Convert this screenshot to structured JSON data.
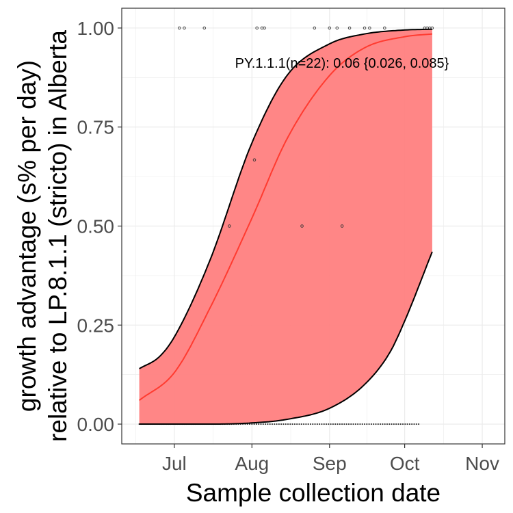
{
  "chart_data": {
    "type": "line",
    "title": "",
    "xlabel": "Sample collection date",
    "ylabel_lines": [
      "growth advantage (s% per day)",
      "relative to LP.8.1.1 (stricto) in Alberta"
    ],
    "xlim": [
      "2025-06-10",
      "2025-11-10"
    ],
    "ylim": [
      -0.05,
      1.05
    ],
    "x_ticks": [
      {
        "date": "2025-07-01",
        "label": "Jul"
      },
      {
        "date": "2025-08-01",
        "label": "Aug"
      },
      {
        "date": "2025-09-01",
        "label": "Sep"
      },
      {
        "date": "2025-10-01",
        "label": "Oct"
      },
      {
        "date": "2025-11-01",
        "label": "Nov"
      }
    ],
    "y_ticks": [
      0,
      0.25,
      0.5,
      0.75,
      1
    ],
    "y_tick_labels": [
      "0.00",
      "0.25",
      "0.50",
      "0.75",
      "1.00"
    ],
    "grid": true,
    "annotation": "PY.1.1.1(n=22): 0.06 {0.026, 0.085}",
    "colors": {
      "ribbon": "#ff7f7f",
      "fit_line": "#ff3b30",
      "bounds": "#000000",
      "points": "#333333",
      "panel_border": "#333333",
      "grid": "#ebebeb"
    },
    "series": [
      {
        "role": "fit",
        "x": [
          "2025-06-17",
          "2025-07-01",
          "2025-07-15",
          "2025-08-01",
          "2025-08-15",
          "2025-09-01",
          "2025-09-15",
          "2025-10-01",
          "2025-10-12"
        ],
        "values": [
          0.06,
          0.13,
          0.29,
          0.52,
          0.72,
          0.88,
          0.95,
          0.978,
          0.985
        ]
      },
      {
        "role": "upper",
        "x": [
          "2025-06-17",
          "2025-06-25",
          "2025-07-01",
          "2025-07-15",
          "2025-08-01",
          "2025-08-15",
          "2025-09-01",
          "2025-09-15",
          "2025-10-01",
          "2025-10-12"
        ],
        "values": [
          0.14,
          0.17,
          0.22,
          0.41,
          0.71,
          0.88,
          0.96,
          0.985,
          0.995,
          0.997
        ]
      },
      {
        "role": "lower",
        "x": [
          "2025-06-17",
          "2025-07-15",
          "2025-08-01",
          "2025-08-15",
          "2025-09-01",
          "2025-09-15",
          "2025-09-25",
          "2025-10-01",
          "2025-10-12"
        ],
        "values": [
          0.0,
          0.0,
          0.003,
          0.012,
          0.04,
          0.1,
          0.18,
          0.26,
          0.435
        ]
      },
      {
        "role": "points",
        "points": [
          {
            "x": "2025-07-03",
            "y": 1
          },
          {
            "x": "2025-07-05",
            "y": 1
          },
          {
            "x": "2025-07-13",
            "y": 1
          },
          {
            "x": "2025-08-03",
            "y": 1
          },
          {
            "x": "2025-08-05",
            "y": 1
          },
          {
            "x": "2025-08-06",
            "y": 1
          },
          {
            "x": "2025-08-26",
            "y": 1
          },
          {
            "x": "2025-09-01",
            "y": 1
          },
          {
            "x": "2025-09-04",
            "y": 1
          },
          {
            "x": "2025-09-09",
            "y": 1
          },
          {
            "x": "2025-09-15",
            "y": 1
          },
          {
            "x": "2025-09-17",
            "y": 1
          },
          {
            "x": "2025-09-23",
            "y": 1
          },
          {
            "x": "2025-10-09",
            "y": 1
          },
          {
            "x": "2025-10-10",
            "y": 1
          },
          {
            "x": "2025-10-11",
            "y": 1
          },
          {
            "x": "2025-10-12",
            "y": 1
          },
          {
            "x": "2025-08-02",
            "y": 0.667
          },
          {
            "x": "2025-07-23",
            "y": 0.5
          },
          {
            "x": "2025-08-21",
            "y": 0.5
          },
          {
            "x": "2025-09-06",
            "y": 0.5
          }
        ]
      }
    ],
    "zero_rug": {
      "start": "2025-06-17",
      "end": "2025-10-07",
      "step_days": 0.9
    }
  }
}
